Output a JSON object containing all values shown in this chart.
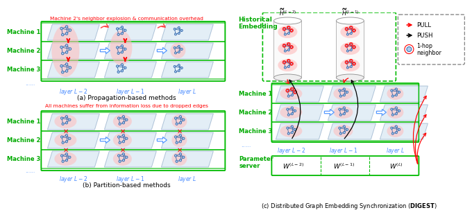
{
  "bg_color": "#ffffff",
  "red_text_top_a": "Machine 2's neighbor explosion & communication overhead",
  "red_text_top_b": "All machines suffer from information loss due to dropped edges",
  "label_a": "(a) Propagation-based methods",
  "label_b": "(b) Partition-based methods",
  "label_c": "(c) Distributed Graph Embedding Synchronization (\\textbf{DIGEST})",
  "machine_labels": [
    "Machine 1",
    "Machine 2",
    "Machine 3"
  ],
  "layer_labels_a": [
    "layer $L-2$",
    "layer $L-1$",
    "layer $L$"
  ],
  "layer_labels_b": [
    "layer $L-2$",
    "layer $L-1$",
    "layer $L$"
  ],
  "layer_labels_c": [
    "layer $L-2$",
    "layer $L-1$",
    "layer $L$"
  ],
  "machine_color": "#00aa00",
  "red_color": "#ff2200",
  "blue_color": "#5599ff",
  "ellipse_color": "#ffbbbb",
  "node_color": "#aaccee",
  "node_edge": "#3366aa",
  "edge_color": "#3366aa",
  "historical_label": "Historical\nEmbedding",
  "param_server_label": "Parameter\nserver",
  "legend_pull": "PULL",
  "legend_push": "PUSH",
  "legend_hop": "1-hop\nneighbor",
  "w_labels": [
    "$W^{(L-2)}$",
    "$W^{(L-1)}$",
    "$W^{(L)}$"
  ],
  "h_labels": [
    "$\\widetilde{H}^{(L-2)}$",
    "$\\widetilde{H}^{(L-1)}$"
  ]
}
